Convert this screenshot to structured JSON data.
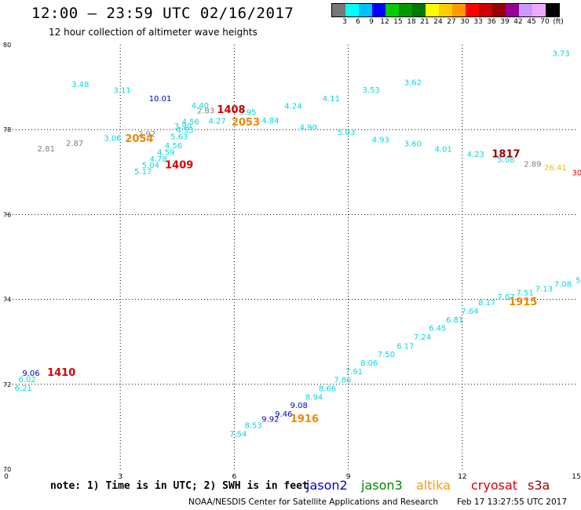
{
  "header": {
    "title": "12:00 – 23:59 UTC 02/16/2017",
    "subtitle": "12 hour collection of altimeter wave heights"
  },
  "legend": {
    "colors": [
      "#777777",
      "#00ffff",
      "#00c0ff",
      "#0000ff",
      "#00cc00",
      "#009900",
      "#007700",
      "#ffff00",
      "#ffcc00",
      "#ff9900",
      "#ff0000",
      "#cc0000",
      "#990000",
      "#990099",
      "#cc99ff",
      "#eeaaff",
      "#000000"
    ],
    "labels": [
      "3",
      "6",
      "9",
      "12",
      "15",
      "18",
      "21",
      "24",
      "27",
      "30",
      "33",
      "36",
      "39",
      "42",
      "45",
      "70",
      "(ft)"
    ]
  },
  "axes": {
    "x_ticks": [
      "0",
      "3",
      "6",
      "9",
      "12",
      "15"
    ],
    "y_ticks": [
      "80",
      "78",
      "76",
      "74",
      "72",
      "70"
    ]
  },
  "chart_data": {
    "type": "scatter",
    "xlim": [
      0,
      15
    ],
    "ylim": [
      70,
      80
    ],
    "grid": true,
    "points": [
      {
        "x": 14.6,
        "y": 79.73,
        "label": "3.73",
        "color": "#00d8e0"
      },
      {
        "x": 1.95,
        "y": 79.0,
        "label": "3.48",
        "color": "#00d8e0"
      },
      {
        "x": 3.05,
        "y": 78.86,
        "label": "3.11",
        "color": "#00d8e0"
      },
      {
        "x": 4.05,
        "y": 78.67,
        "label": "10.01",
        "color": "#0000c0"
      },
      {
        "x": 5.1,
        "y": 78.5,
        "label": "4.40",
        "color": "#00d8e0"
      },
      {
        "x": 5.25,
        "y": 78.38,
        "label": "2.83",
        "color": "#808080"
      },
      {
        "x": 6.35,
        "y": 78.35,
        "label": "3.95",
        "color": "#00d8e0"
      },
      {
        "x": 5.92,
        "y": 78.39,
        "label": "1408",
        "color": "#cc0000",
        "big": true
      },
      {
        "x": 6.3,
        "y": 78.1,
        "label": "2053",
        "color": "#ee8800",
        "big": true
      },
      {
        "x": 5.55,
        "y": 78.14,
        "label": "4.27",
        "color": "#00d8e0"
      },
      {
        "x": 6.95,
        "y": 78.15,
        "label": "4.84",
        "color": "#00d8e0"
      },
      {
        "x": 7.55,
        "y": 78.49,
        "label": "4.24",
        "color": "#00d8e0"
      },
      {
        "x": 8.55,
        "y": 78.67,
        "label": "4.11",
        "color": "#00d8e0"
      },
      {
        "x": 9.6,
        "y": 78.87,
        "label": "3.53",
        "color": "#00d8e0"
      },
      {
        "x": 10.7,
        "y": 79.05,
        "label": "3.62",
        "color": "#00d8e0"
      },
      {
        "x": 4.85,
        "y": 78.12,
        "label": "4.56",
        "color": "#00d8e0"
      },
      {
        "x": 4.65,
        "y": 78.02,
        "label": "3.90",
        "color": "#00d8e0"
      },
      {
        "x": 4.7,
        "y": 77.93,
        "label": "4.53",
        "color": "#00d8e0"
      },
      {
        "x": 3.7,
        "y": 77.84,
        "label": "2.92",
        "color": "#808080"
      },
      {
        "x": 3.5,
        "y": 77.71,
        "label": "2054",
        "color": "#ee8800",
        "big": true
      },
      {
        "x": 2.8,
        "y": 77.74,
        "label": "3.06",
        "color": "#00d8e0"
      },
      {
        "x": 4.55,
        "y": 77.77,
        "label": "5.63",
        "color": "#00d8e0"
      },
      {
        "x": 7.95,
        "y": 77.99,
        "label": "4.90",
        "color": "#00d8e0"
      },
      {
        "x": 8.95,
        "y": 77.87,
        "label": "5.03",
        "color": "#00d8e0"
      },
      {
        "x": 9.85,
        "y": 77.7,
        "label": "4.93",
        "color": "#00d8e0"
      },
      {
        "x": 10.7,
        "y": 77.61,
        "label": "3.60",
        "color": "#00d8e0"
      },
      {
        "x": 1.8,
        "y": 77.62,
        "label": "2.87",
        "color": "#808080"
      },
      {
        "x": 1.05,
        "y": 77.49,
        "label": "2.81",
        "color": "#808080"
      },
      {
        "x": 4.4,
        "y": 77.56,
        "label": "4.56",
        "color": "#00d8e0"
      },
      {
        "x": 11.5,
        "y": 77.48,
        "label": "4.01",
        "color": "#00d8e0"
      },
      {
        "x": 4.2,
        "y": 77.4,
        "label": "4.59",
        "color": "#00d8e0"
      },
      {
        "x": 12.35,
        "y": 77.36,
        "label": "4.23",
        "color": "#00d8e0"
      },
      {
        "x": 13.15,
        "y": 77.35,
        "label": "1817",
        "color": "#990000",
        "big": true
      },
      {
        "x": 4.0,
        "y": 77.25,
        "label": "4.78",
        "color": "#00d8e0"
      },
      {
        "x": 13.15,
        "y": 77.23,
        "label": "5.08",
        "color": "#00d8e0"
      },
      {
        "x": 3.8,
        "y": 77.1,
        "label": "5.04",
        "color": "#00d8e0"
      },
      {
        "x": 4.55,
        "y": 77.09,
        "label": "1409",
        "color": "#dd0000",
        "big": true
      },
      {
        "x": 13.85,
        "y": 77.13,
        "label": "2.89",
        "color": "#808080"
      },
      {
        "x": 14.45,
        "y": 77.04,
        "label": "26.41",
        "color": "#e8c000"
      },
      {
        "x": 15.05,
        "y": 76.92,
        "label": "30.",
        "color": "#dd0000"
      },
      {
        "x": 3.6,
        "y": 76.95,
        "label": "5.17",
        "color": "#00d8e0"
      },
      {
        "x": 15.05,
        "y": 74.39,
        "label": "5",
        "color": "#00d8e0"
      },
      {
        "x": 14.65,
        "y": 74.3,
        "label": "7.08",
        "color": "#00d8e0"
      },
      {
        "x": 14.15,
        "y": 74.19,
        "label": "7.13",
        "color": "#00d8e0"
      },
      {
        "x": 13.65,
        "y": 74.09,
        "label": "7.51",
        "color": "#00d8e0"
      },
      {
        "x": 13.15,
        "y": 73.99,
        "label": "7.07",
        "color": "#00d8e0"
      },
      {
        "x": 13.6,
        "y": 73.86,
        "label": "1915",
        "color": "#ee8800",
        "big": true
      },
      {
        "x": 12.65,
        "y": 73.86,
        "label": "8.17",
        "color": "#00d8e0"
      },
      {
        "x": 12.2,
        "y": 73.66,
        "label": "7.64",
        "color": "#00d8e0"
      },
      {
        "x": 11.8,
        "y": 73.46,
        "label": "6.81",
        "color": "#00d8e0"
      },
      {
        "x": 11.35,
        "y": 73.26,
        "label": "6.45",
        "color": "#00d8e0"
      },
      {
        "x": 10.95,
        "y": 73.05,
        "label": "7.24",
        "color": "#00d8e0"
      },
      {
        "x": 10.5,
        "y": 72.84,
        "label": "6.17",
        "color": "#00d8e0"
      },
      {
        "x": 10.0,
        "y": 72.64,
        "label": "7.50",
        "color": "#00d8e0"
      },
      {
        "x": 9.55,
        "y": 72.44,
        "label": "8.06",
        "color": "#00d8e0"
      },
      {
        "x": 9.15,
        "y": 72.24,
        "label": "7.91",
        "color": "#00d8e0"
      },
      {
        "x": 8.85,
        "y": 72.04,
        "label": "7.86",
        "color": "#00d8e0"
      },
      {
        "x": 8.45,
        "y": 71.84,
        "label": "8.66",
        "color": "#00d8e0"
      },
      {
        "x": 8.1,
        "y": 71.64,
        "label": "8.94",
        "color": "#00d8e0"
      },
      {
        "x": 7.7,
        "y": 71.44,
        "label": "9.08",
        "color": "#0000d0"
      },
      {
        "x": 7.3,
        "y": 71.24,
        "label": "9.46",
        "color": "#0000d0"
      },
      {
        "x": 6.95,
        "y": 71.12,
        "label": "9.92",
        "color": "#0000d0"
      },
      {
        "x": 7.85,
        "y": 71.11,
        "label": "1916",
        "color": "#ee8800",
        "big": true
      },
      {
        "x": 6.5,
        "y": 70.97,
        "label": "8.53",
        "color": "#00d8e0"
      },
      {
        "x": 6.1,
        "y": 70.77,
        "label": "7.54",
        "color": "#00d8e0"
      },
      {
        "x": 0.65,
        "y": 72.2,
        "label": "9.06",
        "color": "#0000d0"
      },
      {
        "x": 1.45,
        "y": 72.2,
        "label": "1410",
        "color": "#dd0000",
        "big": true
      },
      {
        "x": 0.55,
        "y": 72.05,
        "label": "6.02",
        "color": "#00d8e0"
      },
      {
        "x": 0.45,
        "y": 71.85,
        "label": "6.21",
        "color": "#00d8e0"
      }
    ]
  },
  "footer": {
    "note": "note:  1) Time is in UTC;  2) SWH is in feet",
    "satellites": [
      {
        "name": "jason2",
        "color": "#0000cc"
      },
      {
        "name": "jason3",
        "color": "#008800"
      },
      {
        "name": "altika",
        "color": "#ff9900"
      },
      {
        "name": "cryosat",
        "color": "#dd0000"
      },
      {
        "name": "s3a",
        "color": "#990000"
      }
    ],
    "credit": "NOAA/NESDIS Center for Satellite Applications and Research",
    "timestamp": "Feb 17 13:27:55 UTC 2017"
  }
}
